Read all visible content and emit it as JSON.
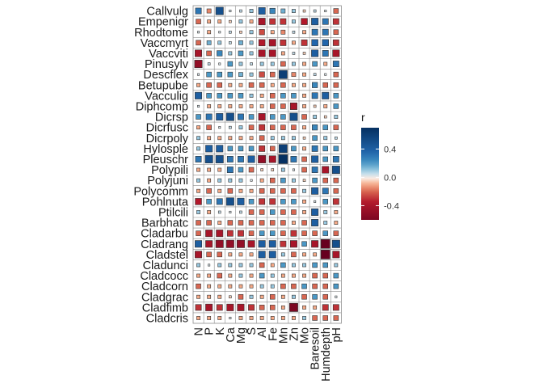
{
  "chart_data": {
    "type": "heatmap",
    "subtype": "correlation-square-plot",
    "title": "",
    "xlabel": "",
    "ylabel": "",
    "rows": [
      "Callvulg",
      "Empenigr",
      "Rhodtome",
      "Vaccmyrt",
      "Vaccviti",
      "Pinusylv",
      "Descflex",
      "Betupube",
      "Vacculig",
      "Diphcomp",
      "Dicrsp",
      "Dicrfusc",
      "Dicrpoly",
      "Hylosple",
      "Pleuschr",
      "Polypili",
      "Polyjuni",
      "Polycomm",
      "Pohlnuta",
      "Ptilcili",
      "Barbhatc",
      "Cladarbu",
      "Cladrang",
      "Cladstel",
      "Cladunci",
      "Cladcocc",
      "Cladcorn",
      "Cladgrac",
      "Cladfimb",
      "Cladcris"
    ],
    "columns": [
      "N",
      "P",
      "K",
      "Ca",
      "Mg",
      "S",
      "Al",
      "Fe",
      "Mn",
      "Zn",
      "Mo",
      "Baresoil",
      "Humdepth",
      "pH"
    ],
    "values": [
      [
        0.3,
        -0.15,
        0.5,
        0.02,
        0.05,
        0.1,
        0.4,
        0.25,
        0.15,
        0.1,
        -0.05,
        0.05,
        0.02,
        -0.2
      ],
      [
        -0.2,
        -0.1,
        -0.1,
        -0.05,
        0.1,
        -0.1,
        -0.4,
        -0.3,
        -0.3,
        0.1,
        -0.35,
        0.4,
        0.3,
        -0.3
      ],
      [
        0.02,
        -0.1,
        0.02,
        0.05,
        -0.05,
        0.1,
        -0.25,
        -0.1,
        -0.15,
        0.05,
        -0.1,
        0.3,
        0.3,
        -0.2
      ],
      [
        -0.2,
        0.15,
        0.1,
        0.05,
        0.15,
        0.1,
        -0.35,
        -0.4,
        -0.3,
        -0.1,
        -0.3,
        0.35,
        0.35,
        -0.3
      ],
      [
        -0.4,
        -0.2,
        0.25,
        0.1,
        0.2,
        0.1,
        -0.4,
        -0.4,
        -0.1,
        0.05,
        -0.05,
        0.4,
        0.3,
        -0.4
      ],
      [
        -0.5,
        0.05,
        0.02,
        0.2,
        0.1,
        0.05,
        0.1,
        0.1,
        -0.2,
        0.1,
        -0.1,
        0.2,
        -0.1,
        0.3
      ],
      [
        0.02,
        0.2,
        0.2,
        0.2,
        0.15,
        0.1,
        -0.25,
        -0.2,
        0.6,
        -0.15,
        -0.1,
        0.05,
        0.02,
        -0.2
      ],
      [
        -0.1,
        -0.2,
        -0.2,
        -0.1,
        -0.1,
        -0.2,
        -0.2,
        -0.1,
        -0.2,
        -0.1,
        -0.1,
        0.25,
        -0.2,
        -0.2
      ],
      [
        0.4,
        0.2,
        0.2,
        0.2,
        0.2,
        0.1,
        -0.1,
        -0.2,
        0.2,
        0.2,
        -0.1,
        0.3,
        0.4,
        0.2
      ],
      [
        0.02,
        -0.1,
        -0.1,
        -0.1,
        -0.1,
        -0.1,
        -0.1,
        -0.2,
        -0.2,
        -0.4,
        -0.1,
        -0.05,
        -0.1,
        0.2
      ],
      [
        0.2,
        0.3,
        0.4,
        0.5,
        0.3,
        0.2,
        -0.4,
        0.2,
        0.2,
        0.5,
        -0.2,
        0.1,
        -0.05,
        0.1
      ],
      [
        -0.1,
        -0.2,
        0.02,
        0.05,
        0.1,
        -0.2,
        -0.3,
        -0.2,
        -0.2,
        -0.2,
        -0.1,
        0.25,
        0.2,
        -0.2
      ],
      [
        0.1,
        -0.1,
        -0.1,
        -0.1,
        -0.1,
        -0.1,
        -0.2,
        0.1,
        0.1,
        0.1,
        -0.05,
        0.2,
        0.1,
        0.05
      ],
      [
        0.1,
        0.4,
        0.4,
        0.2,
        0.2,
        0.2,
        -0.3,
        -0.2,
        0.6,
        0.2,
        -0.1,
        0.3,
        0.2,
        0.2
      ],
      [
        0.3,
        0.5,
        0.5,
        0.3,
        0.3,
        0.4,
        -0.5,
        -0.4,
        0.7,
        0.3,
        -0.2,
        0.4,
        0.2,
        0.3
      ],
      [
        -0.1,
        -0.1,
        -0.1,
        0.3,
        0.2,
        -0.2,
        -0.05,
        -0.05,
        0.1,
        0.02,
        -0.2,
        0.3,
        -0.4,
        0.5
      ],
      [
        0.1,
        -0.1,
        0.1,
        0.1,
        0.1,
        0.02,
        -0.1,
        -0.2,
        0.2,
        0.1,
        -0.05,
        0.2,
        -0.2,
        -0.2
      ],
      [
        -0.1,
        -0.2,
        -0.1,
        -0.2,
        -0.1,
        -0.1,
        -0.2,
        -0.2,
        -0.2,
        -0.2,
        0.1,
        0.4,
        0.3,
        -0.2
      ],
      [
        -0.35,
        0.2,
        0.3,
        0.5,
        0.4,
        0.2,
        -0.3,
        -0.3,
        0.2,
        0.2,
        -0.1,
        0.02,
        0.2,
        -0.3
      ],
      [
        0.1,
        -0.1,
        0.05,
        0.02,
        0.05,
        -0.2,
        -0.2,
        0.2,
        -0.2,
        -0.2,
        -0.1,
        0.4,
        0.1,
        -0.1
      ],
      [
        -0.2,
        -0.2,
        -0.1,
        -0.2,
        -0.2,
        -0.2,
        -0.2,
        -0.2,
        -0.2,
        -0.1,
        -0.2,
        0.4,
        0.1,
        -0.1
      ],
      [
        -0.2,
        -0.4,
        -0.4,
        -0.3,
        -0.3,
        -0.2,
        0.2,
        0.2,
        -0.2,
        -0.3,
        -0.2,
        -0.2,
        0.2,
        -0.2
      ],
      [
        0.4,
        -0.4,
        -0.5,
        -0.5,
        -0.5,
        -0.4,
        0.4,
        0.4,
        -0.3,
        -0.4,
        0.2,
        -0.4,
        -0.7,
        0.5
      ],
      [
        -0.4,
        -0.2,
        -0.2,
        -0.1,
        -0.1,
        -0.1,
        0.4,
        0.4,
        0.1,
        -0.2,
        -0.1,
        -0.1,
        -0.7,
        -0.4
      ],
      [
        0.1,
        0.02,
        0.1,
        0.1,
        0.1,
        0.1,
        -0.2,
        -0.1,
        0.2,
        0.1,
        0.1,
        0.2,
        0.2,
        0.1
      ],
      [
        -0.1,
        -0.1,
        -0.2,
        -0.1,
        0.1,
        -0.1,
        0.2,
        0.1,
        -0.1,
        -0.1,
        -0.1,
        -0.2,
        -0.2,
        0.2
      ],
      [
        -0.2,
        -0.1,
        -0.1,
        -0.1,
        -0.1,
        -0.1,
        0.1,
        0.1,
        -0.2,
        -0.2,
        0.2,
        -0.2,
        -0.2,
        0.2
      ],
      [
        -0.1,
        -0.1,
        -0.1,
        -0.05,
        -0.2,
        0.1,
        -0.1,
        -0.2,
        -0.1,
        0.1,
        -0.2,
        0.2,
        -0.2,
        0.02
      ],
      [
        -0.3,
        -0.4,
        -0.3,
        -0.4,
        -0.4,
        -0.3,
        -0.2,
        -0.2,
        -0.1,
        -0.6,
        -0.1,
        -0.1,
        -0.3,
        -0.3
      ],
      [
        -0.1,
        -0.1,
        -0.1,
        0.02,
        -0.1,
        -0.1,
        -0.1,
        -0.1,
        -0.1,
        -0.1,
        0.1,
        -0.2,
        -0.2,
        -0.2
      ]
    ],
    "legend": {
      "title": "r",
      "ticks": [
        0.4,
        0.0,
        -0.4
      ],
      "tick_labels": [
        "0.4",
        "0.0",
        "-0.4"
      ],
      "limits": [
        -0.6,
        0.7
      ],
      "palette": "RdBu",
      "placement": "right"
    },
    "colors": {
      "negative": "#67001f",
      "zero": "#f7f7f7",
      "positive": "#053061",
      "grid": "#8c8c8c",
      "square_border": "#333333"
    }
  }
}
